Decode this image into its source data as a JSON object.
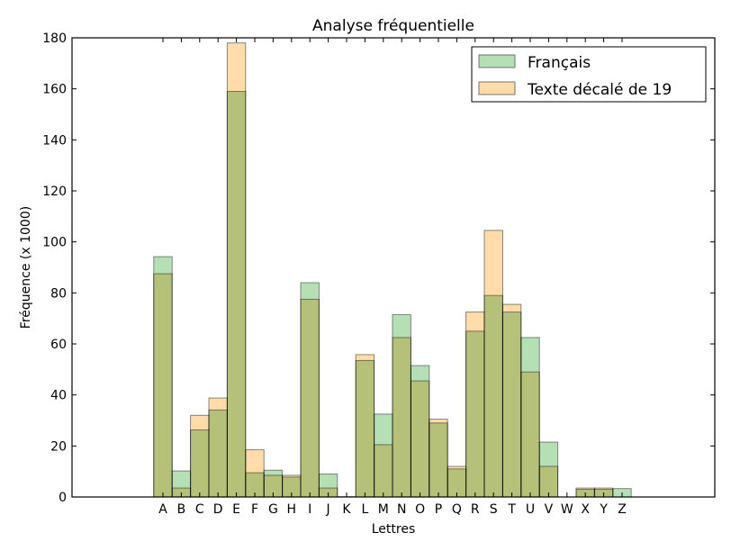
{
  "chart_data": {
    "type": "bar",
    "title": "Analyse fréquentielle",
    "xlabel": "Lettres",
    "ylabel": "Fréquence (x 1000)",
    "ylim": [
      0,
      180
    ],
    "yticks": [
      0,
      20,
      40,
      60,
      80,
      100,
      120,
      140,
      160,
      180
    ],
    "categories": [
      "A",
      "B",
      "C",
      "D",
      "E",
      "F",
      "G",
      "H",
      "I",
      "J",
      "K",
      "L",
      "M",
      "N",
      "O",
      "P",
      "Q",
      "R",
      "S",
      "T",
      "U",
      "V",
      "W",
      "X",
      "Y",
      "Z"
    ],
    "legend_position": "top-right",
    "grid": false,
    "series": [
      {
        "name": "Français",
        "color": "#a8dba8",
        "values": [
          94.2,
          10.2,
          26.3,
          34.1,
          159.0,
          9.5,
          10.5,
          7.8,
          84.0,
          9.0,
          0.1,
          53.5,
          32.5,
          71.5,
          51.5,
          29.0,
          11.0,
          65.0,
          79.0,
          72.5,
          62.5,
          21.5,
          0.0,
          3.0,
          3.0,
          3.3
        ]
      },
      {
        "name": "Texte décalé de 19",
        "color": "#ffd69a",
        "values": [
          87.5,
          3.5,
          32.0,
          38.8,
          178.0,
          18.5,
          8.5,
          8.5,
          77.5,
          3.5,
          0.0,
          55.8,
          20.5,
          62.5,
          45.5,
          30.5,
          12.0,
          72.5,
          104.5,
          75.5,
          49.0,
          12.0,
          0.0,
          3.5,
          3.5,
          0.0
        ]
      }
    ]
  }
}
